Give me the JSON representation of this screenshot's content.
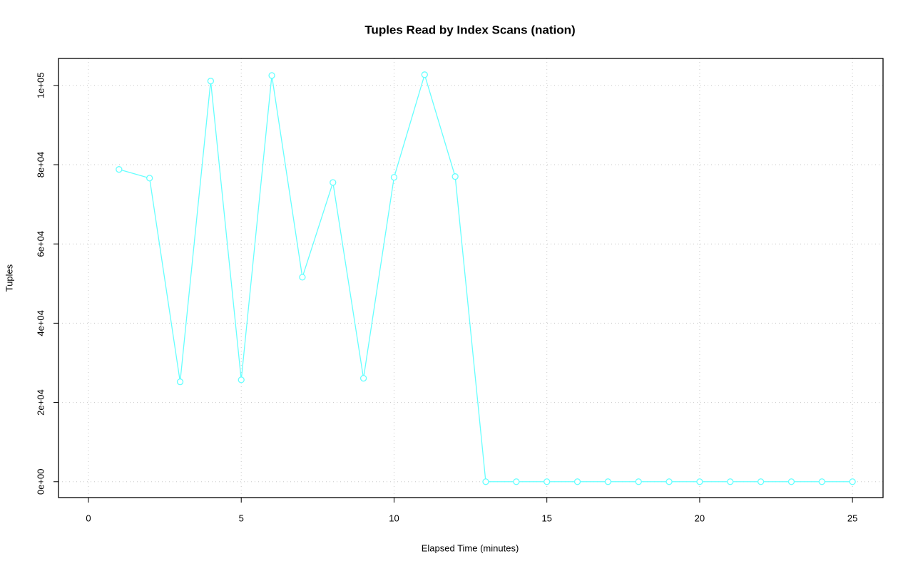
{
  "chart_data": {
    "type": "line",
    "title": "Tuples Read by Index Scans (nation)",
    "x_label": "Elapsed Time (minutes)",
    "y_label": "Tuples",
    "x": [
      1,
      2,
      3,
      4,
      5,
      6,
      7,
      8,
      9,
      10,
      11,
      12,
      13,
      14,
      15,
      16,
      17,
      18,
      19,
      20,
      21,
      22,
      23,
      24,
      25
    ],
    "series": [
      {
        "color": "#66ffff",
        "values": [
          78800,
          76600,
          25200,
          101100,
          25700,
          102500,
          51600,
          75500,
          26100,
          76800,
          102700,
          77000,
          0,
          0,
          0,
          0,
          0,
          0,
          0,
          0,
          0,
          0,
          0,
          0,
          0
        ]
      }
    ],
    "xlim": [
      -0.98,
      26.0
    ],
    "xticks": [
      0,
      5,
      10,
      15,
      20,
      25
    ],
    "ylim": [
      -4000,
      106800
    ],
    "yticks": [
      {
        "value": 0,
        "label": "0e+00"
      },
      {
        "value": 20000,
        "label": "2e+04"
      },
      {
        "value": 40000,
        "label": "4e+04"
      },
      {
        "value": 60000,
        "label": "6e+04"
      },
      {
        "value": 80000,
        "label": "8e+04"
      },
      {
        "value": 100000,
        "label": "1e+05"
      }
    ],
    "grid": true
  }
}
